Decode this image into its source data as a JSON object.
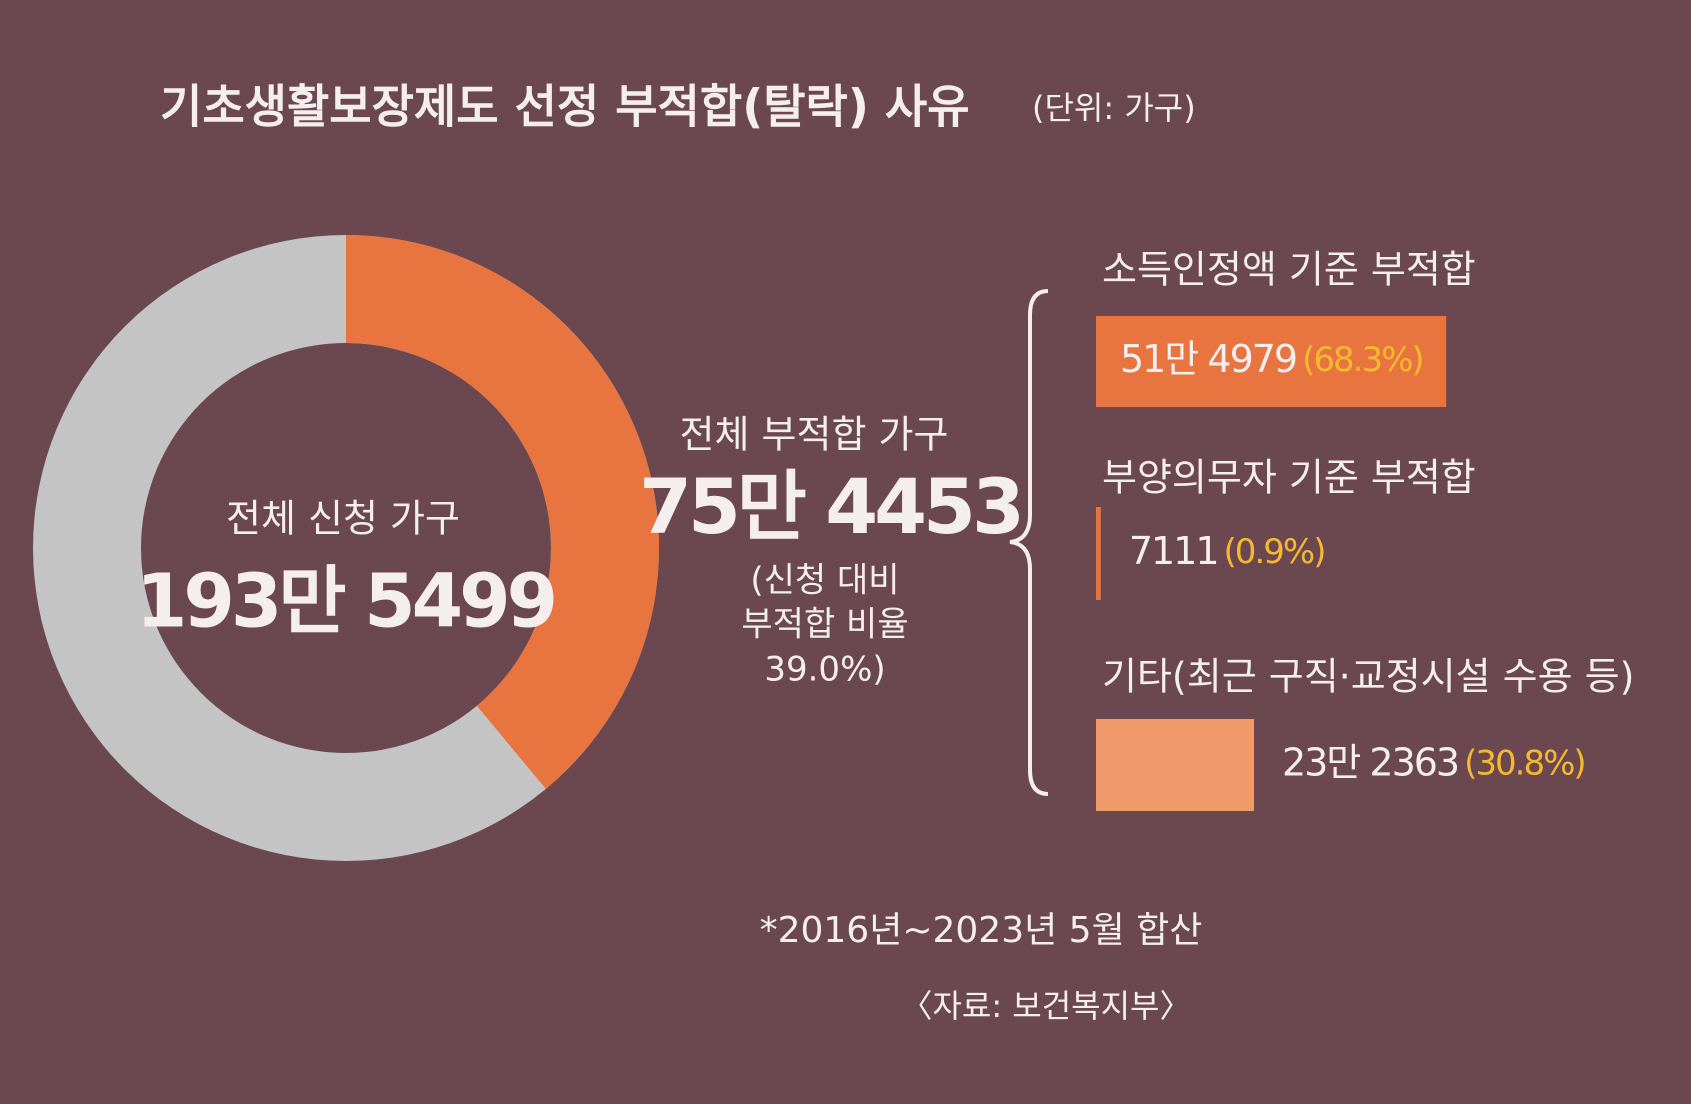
{
  "chart_data": [
    {
      "type": "pie",
      "title": "기초생활보장제도 선정 부적합(탈락) 사유",
      "subtitle": "(단위: 가구)",
      "total": {
        "label": "전체 신청 가구",
        "value": 1935499,
        "value_label": "193만 5499",
        "color": "#c4c4c4"
      },
      "categories": [
        "전체 부적합 가구"
      ],
      "values": [
        754453
      ],
      "value_labels": [
        "75만 4453"
      ],
      "color": "#e8743f",
      "annotation": [
        "(신청 대비",
        "부적합 비율",
        "39.0%)"
      ]
    },
    {
      "type": "bar",
      "orientation": "horizontal",
      "categories": [
        "소득인정액 기준 부적합",
        "부양의무자 기준 부적합",
        "기타(최근 구직·교정시설 수용 등)"
      ],
      "values": [
        514979,
        7111,
        232363
      ],
      "value_labels": [
        "51만 4979",
        "7111",
        "23만 2363"
      ],
      "shares": [
        68.3,
        0.9,
        30.8
      ],
      "share_labels": [
        "(68.3%)",
        "(0.9%)",
        "(30.8%)"
      ],
      "colors": [
        "#e8743f",
        "#e8743f",
        "#f0996a"
      ],
      "share_color": "#f5b82e",
      "xlim": [
        0,
        800000
      ],
      "notes": [
        "*2016년~2023년 5월 합산",
        "〈자료: 보건복지부〉"
      ]
    }
  ]
}
